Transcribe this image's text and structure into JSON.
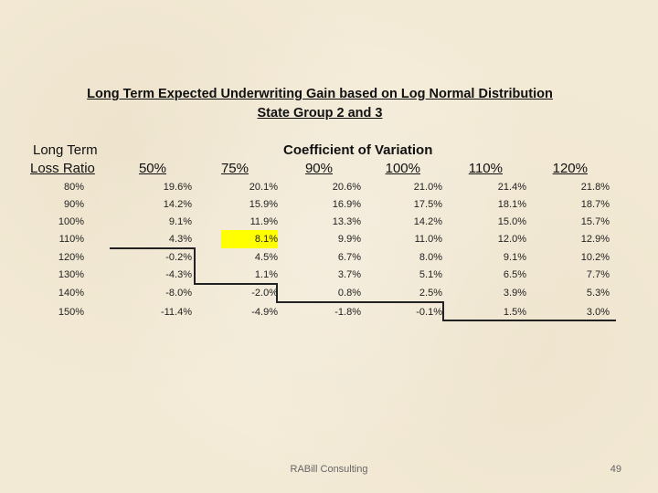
{
  "title_line1": "Long Term Expected Underwriting Gain based on Log Normal Distribution",
  "title_line2": "State Group 2 and 3",
  "row_header_line1": "Long Term",
  "row_header_line2": "Loss Ratio",
  "column_group_title": "Coefficient of Variation",
  "columns": [
    "50%",
    "75%",
    "90%",
    "100%",
    "110%",
    "120%"
  ],
  "rows": [
    {
      "label": "80%",
      "values": [
        "19.6%",
        "20.1%",
        "20.6%",
        "21.0%",
        "21.4%",
        "21.8%"
      ]
    },
    {
      "label": "90%",
      "values": [
        "14.2%",
        "15.9%",
        "16.9%",
        "17.5%",
        "18.1%",
        "18.7%"
      ]
    },
    {
      "label": "100%",
      "values": [
        "9.1%",
        "11.9%",
        "13.3%",
        "14.2%",
        "15.0%",
        "15.7%"
      ]
    },
    {
      "label": "110%",
      "values": [
        "4.3%",
        "8.1%",
        "9.9%",
        "11.0%",
        "12.0%",
        "12.9%"
      ]
    },
    {
      "label": "120%",
      "values": [
        "-0.2%",
        "4.5%",
        "6.7%",
        "8.0%",
        "9.1%",
        "10.2%"
      ]
    },
    {
      "label": "130%",
      "values": [
        "-4.3%",
        "1.1%",
        "3.7%",
        "5.1%",
        "6.5%",
        "7.7%"
      ]
    },
    {
      "label": "140%",
      "values": [
        "-8.0%",
        "-2.0%",
        "0.8%",
        "2.5%",
        "3.9%",
        "5.3%"
      ]
    },
    {
      "label": "150%",
      "values": [
        "-11.4%",
        "-4.9%",
        "-1.8%",
        "-0.1%",
        "1.5%",
        "3.0%"
      ]
    }
  ],
  "highlight_color": "#ffff00",
  "footer_text": "RABill Consulting",
  "page_number": "49"
}
